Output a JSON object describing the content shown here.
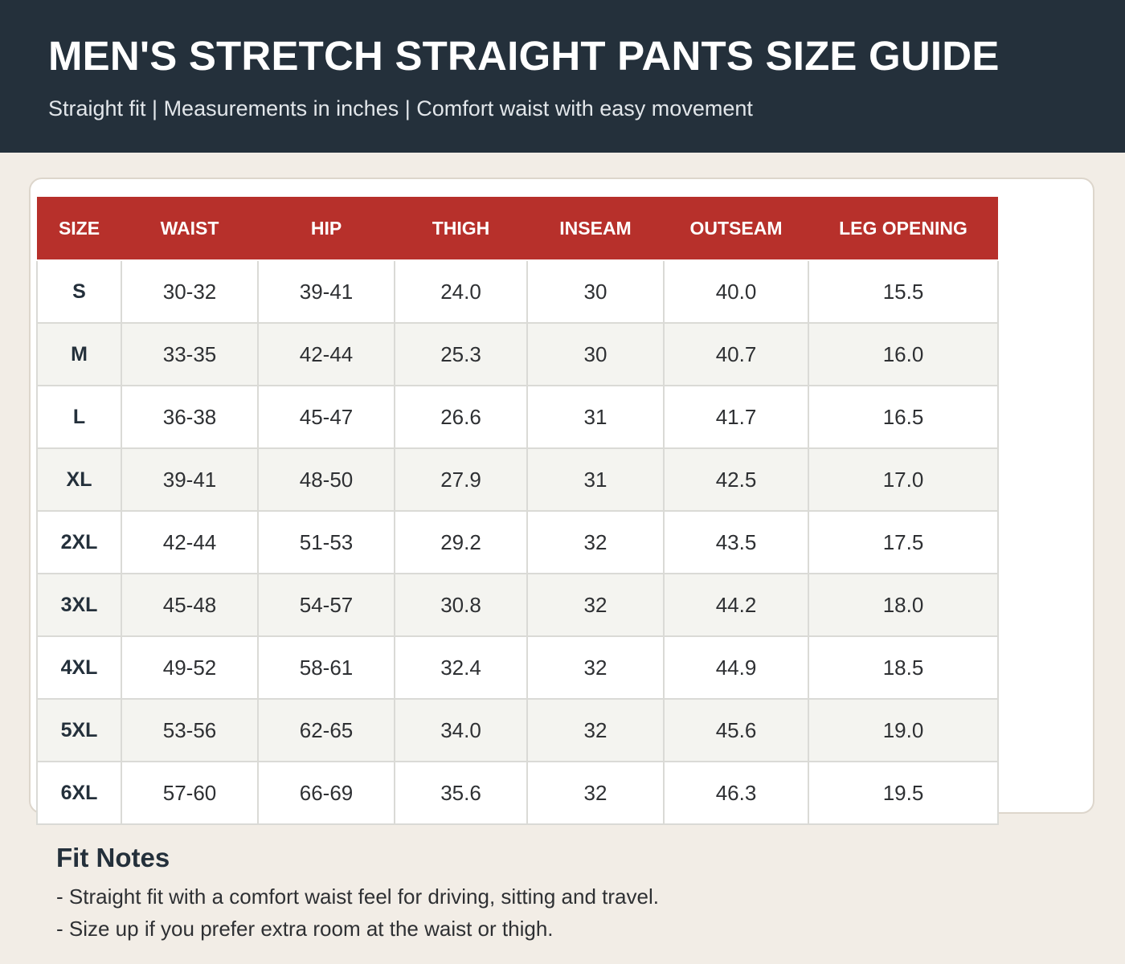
{
  "header": {
    "title": "MEN'S STRETCH STRAIGHT PANTS SIZE GUIDE",
    "subtitle": "Straight fit | Measurements in inches | Comfort waist with easy movement"
  },
  "table": {
    "columns": [
      "SIZE",
      "WAIST",
      "HIP",
      "THIGH",
      "INSEAM",
      "OUTSEAM",
      "LEG OPENING"
    ],
    "rows": [
      [
        "S",
        "30-32",
        "39-41",
        "24.0",
        "30",
        "40.0",
        "15.5"
      ],
      [
        "M",
        "33-35",
        "42-44",
        "25.3",
        "30",
        "40.7",
        "16.0"
      ],
      [
        "L",
        "36-38",
        "45-47",
        "26.6",
        "31",
        "41.7",
        "16.5"
      ],
      [
        "XL",
        "39-41",
        "48-50",
        "27.9",
        "31",
        "42.5",
        "17.0"
      ],
      [
        "2XL",
        "42-44",
        "51-53",
        "29.2",
        "32",
        "43.5",
        "17.5"
      ],
      [
        "3XL",
        "45-48",
        "54-57",
        "30.8",
        "32",
        "44.2",
        "18.0"
      ],
      [
        "4XL",
        "49-52",
        "58-61",
        "32.4",
        "32",
        "44.9",
        "18.5"
      ],
      [
        "5XL",
        "53-56",
        "62-65",
        "34.0",
        "32",
        "45.6",
        "19.0"
      ],
      [
        "6XL",
        "57-60",
        "66-69",
        "35.6",
        "32",
        "46.3",
        "19.5"
      ]
    ]
  },
  "notes": {
    "title": "Fit Notes",
    "items": [
      "- Straight fit with a comfort waist feel for driving, sitting and travel.",
      "- Size up if you prefer extra room at the waist or thigh."
    ]
  },
  "colors": {
    "header_bg": "#24303b",
    "table_header_bg": "#b7302b",
    "page_bg": "#f2ede6",
    "row_alt_bg": "#f4f4f0"
  }
}
